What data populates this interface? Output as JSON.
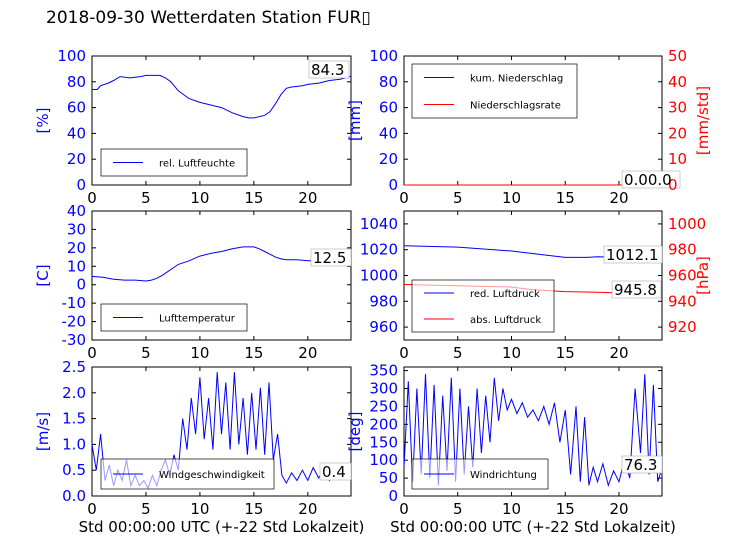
{
  "title": "2018-09-30 Wetterdaten Station FUR▯",
  "colors": {
    "blue": "#0000ff",
    "red": "#ff0000"
  },
  "chart_data": [
    {
      "id": "humidity",
      "type": "line",
      "x_ticks": [
        0,
        5,
        10,
        15,
        20
      ],
      "xlim": [
        0,
        24
      ],
      "y_ticks": [
        0,
        20,
        40,
        60,
        80,
        100
      ],
      "ylim": [
        0,
        100
      ],
      "ylabel": "[%]",
      "last_value_label": "84.3",
      "legend": "upper-left-low",
      "series": [
        {
          "name": "rel. Luftfeuchte",
          "color": "#0000ff",
          "points": [
            [
              0,
              74
            ],
            [
              0.5,
              74
            ],
            [
              0.8,
              77
            ],
            [
              1.5,
              79
            ],
            [
              2,
              81
            ],
            [
              2.6,
              84
            ],
            [
              3.5,
              83
            ],
            [
              4.5,
              84
            ],
            [
              5,
              85
            ],
            [
              5.8,
              85
            ],
            [
              6.3,
              85
            ],
            [
              6.8,
              83
            ],
            [
              7.3,
              80
            ],
            [
              8,
              73
            ],
            [
              9,
              67
            ],
            [
              10,
              64
            ],
            [
              11,
              62
            ],
            [
              12,
              60
            ],
            [
              13,
              56
            ],
            [
              14,
              53
            ],
            [
              14.5,
              52
            ],
            [
              15,
              52
            ],
            [
              16,
              54
            ],
            [
              16.5,
              57
            ],
            [
              17,
              63
            ],
            [
              17.5,
              70
            ],
            [
              18,
              75
            ],
            [
              18.5,
              76
            ],
            [
              19.5,
              77
            ],
            [
              20,
              78
            ],
            [
              21,
              79
            ],
            [
              22,
              81
            ],
            [
              23,
              82
            ],
            [
              24,
              84.3
            ]
          ]
        }
      ]
    },
    {
      "id": "precipitation",
      "type": "line",
      "x_ticks": [
        0,
        5,
        10,
        15,
        20
      ],
      "xlim": [
        0,
        24
      ],
      "y_ticks": [
        0,
        20,
        40,
        60,
        80,
        100
      ],
      "ylim": [
        0,
        100
      ],
      "y2_ticks": [
        0,
        10,
        20,
        30,
        40,
        50
      ],
      "y2lim": [
        0,
        50
      ],
      "ylabel": "[mm]",
      "y2label": "[mm/std]",
      "last_value_label": "0.00.0",
      "legend": "upper-left",
      "series": [
        {
          "name": "kum. Niederschlag",
          "color": "#0000ff",
          "points": [
            [
              0,
              0
            ],
            [
              24,
              0
            ]
          ]
        },
        {
          "name": "Niederschlagsrate",
          "color": "#ff0000",
          "axis": "right",
          "points": [
            [
              0,
              0
            ],
            [
              24,
              0
            ]
          ]
        }
      ]
    },
    {
      "id": "temperature",
      "type": "line",
      "x_ticks": [
        0,
        5,
        10,
        15,
        20
      ],
      "xlim": [
        0,
        24
      ],
      "y_ticks": [
        -30,
        -20,
        -10,
        0,
        10,
        20,
        30,
        40
      ],
      "ylim": [
        -30,
        40
      ],
      "ylabel": "[C]",
      "last_value_label": "12.5",
      "legend": "lower-left",
      "series": [
        {
          "name": "Lufttemperatur",
          "color": "#0000ff",
          "points": [
            [
              0,
              4.5
            ],
            [
              1,
              4
            ],
            [
              2,
              3
            ],
            [
              3,
              2.5
            ],
            [
              4,
              2.5
            ],
            [
              5,
              2
            ],
            [
              5.5,
              2.5
            ],
            [
              6,
              3.5
            ],
            [
              6.5,
              5
            ],
            [
              7,
              7
            ],
            [
              7.5,
              9
            ],
            [
              8,
              11
            ],
            [
              9,
              13
            ],
            [
              10,
              15.5
            ],
            [
              11,
              17
            ],
            [
              12,
              18
            ],
            [
              13,
              19.5
            ],
            [
              14,
              20.5
            ],
            [
              15,
              20.5
            ],
            [
              15.5,
              19.5
            ],
            [
              16,
              18
            ],
            [
              16.5,
              16.5
            ],
            [
              17,
              15
            ],
            [
              17.5,
              14
            ],
            [
              18,
              13.5
            ],
            [
              19,
              13.5
            ],
            [
              20,
              13
            ],
            [
              21,
              13
            ],
            [
              22,
              12.5
            ],
            [
              23,
              12.5
            ],
            [
              24,
              12.5
            ]
          ]
        }
      ]
    },
    {
      "id": "pressure",
      "type": "line",
      "x_ticks": [
        0,
        5,
        10,
        15,
        20
      ],
      "xlim": [
        0,
        24
      ],
      "y_ticks": [
        960,
        980,
        1000,
        1020,
        1040
      ],
      "ylim": [
        950,
        1050
      ],
      "y2_ticks": [
        920,
        940,
        960,
        980,
        1000
      ],
      "y2lim": [
        910,
        1010
      ],
      "y2label": "[hPa]",
      "last_value_labels": [
        "1012.1",
        "945.8"
      ],
      "legend": "lower-left",
      "series": [
        {
          "name": "red. Luftdruck",
          "color": "#0000ff",
          "points": [
            [
              0,
              1023
            ],
            [
              5,
              1022
            ],
            [
              10,
              1019
            ],
            [
              13,
              1016
            ],
            [
              15,
              1014
            ],
            [
              17,
              1014
            ],
            [
              18,
              1014.5
            ],
            [
              20,
              1014
            ],
            [
              22,
              1013
            ],
            [
              24,
              1012.1
            ]
          ]
        },
        {
          "name": "abs. Luftdruck",
          "color": "#ff0000",
          "axis": "right",
          "points": [
            [
              0,
              953
            ],
            [
              5,
              952
            ],
            [
              10,
              951
            ],
            [
              12,
              949
            ],
            [
              15,
              947.5
            ],
            [
              18,
              947
            ],
            [
              21,
              946.2
            ],
            [
              24,
              945.8
            ]
          ]
        }
      ]
    },
    {
      "id": "wind_speed",
      "type": "line",
      "x_ticks": [
        0,
        5,
        10,
        15,
        20
      ],
      "xlim": [
        0,
        24
      ],
      "y_ticks": [
        0.0,
        0.5,
        1.0,
        1.5,
        2.0,
        2.5
      ],
      "ylim": [
        0,
        2.5
      ],
      "ylabel": "[m/s]",
      "xlabel": "Std 00:00:00 UTC (+-22 Std Lokalzeit)",
      "last_value_label": "0.4",
      "legend": "lower-left",
      "series": [
        {
          "name": "Windgeschwindigkeit",
          "color": "#0000ff",
          "points": [
            [
              0,
              1.0
            ],
            [
              0.4,
              0.5
            ],
            [
              0.8,
              1.2
            ],
            [
              1.2,
              0.3
            ],
            [
              1.6,
              0.6
            ],
            [
              2,
              0.2
            ],
            [
              2.4,
              0.5
            ],
            [
              2.8,
              0.3
            ],
            [
              3.2,
              0.7
            ],
            [
              3.6,
              0.2
            ],
            [
              4,
              0.4
            ],
            [
              4.4,
              0.2
            ],
            [
              4.8,
              0.3
            ],
            [
              5.2,
              0.15
            ],
            [
              5.6,
              0.4
            ],
            [
              6,
              0.2
            ],
            [
              6.4,
              0.5
            ],
            [
              6.8,
              0.7
            ],
            [
              7.2,
              0.4
            ],
            [
              7.6,
              0.8
            ],
            [
              8,
              0.5
            ],
            [
              8.4,
              1.5
            ],
            [
              8.8,
              0.9
            ],
            [
              9.2,
              1.9
            ],
            [
              9.6,
              1.2
            ],
            [
              10,
              2.3
            ],
            [
              10.4,
              1.1
            ],
            [
              10.8,
              1.9
            ],
            [
              11.2,
              0.9
            ],
            [
              11.6,
              2.4
            ],
            [
              12,
              1.2
            ],
            [
              12.4,
              2.2
            ],
            [
              12.8,
              0.9
            ],
            [
              13.2,
              2.4
            ],
            [
              13.6,
              1.0
            ],
            [
              14,
              1.9
            ],
            [
              14.4,
              0.8
            ],
            [
              14.8,
              2.0
            ],
            [
              15.2,
              0.9
            ],
            [
              15.6,
              2.1
            ],
            [
              16,
              0.8
            ],
            [
              16.4,
              2.2
            ],
            [
              16.8,
              0.7
            ],
            [
              17.2,
              1.2
            ],
            [
              17.6,
              0.4
            ],
            [
              18,
              0.25
            ],
            [
              18.5,
              0.45
            ],
            [
              19,
              0.3
            ],
            [
              19.5,
              0.5
            ],
            [
              20,
              0.3
            ],
            [
              20.5,
              0.55
            ],
            [
              21,
              0.35
            ],
            [
              21.5,
              0.5
            ],
            [
              22,
              0.3
            ],
            [
              22.5,
              0.45
            ],
            [
              23,
              0.35
            ],
            [
              23.5,
              0.5
            ],
            [
              24,
              0.4
            ]
          ]
        }
      ]
    },
    {
      "id": "wind_direction",
      "type": "line",
      "x_ticks": [
        0,
        5,
        10,
        15,
        20
      ],
      "xlim": [
        0,
        24
      ],
      "y_ticks": [
        0,
        50,
        100,
        150,
        200,
        250,
        300,
        350
      ],
      "ylim": [
        0,
        360
      ],
      "ylabel": "[deg]",
      "xlabel": "Std 00:00:00 UTC (+-22 Std Lokalzeit)",
      "last_value_label": "76.3",
      "legend": "lower-left",
      "series": [
        {
          "name": "Windrichtung",
          "color": "#0000ff",
          "points": [
            [
              0,
              80
            ],
            [
              0.4,
              320
            ],
            [
              0.8,
              40
            ],
            [
              1.2,
              300
            ],
            [
              1.6,
              60
            ],
            [
              2,
              340
            ],
            [
              2.4,
              50
            ],
            [
              2.8,
              310
            ],
            [
              3.2,
              30
            ],
            [
              3.6,
              280
            ],
            [
              4,
              70
            ],
            [
              4.4,
              330
            ],
            [
              4.8,
              40
            ],
            [
              5.2,
              300
            ],
            [
              5.6,
              60
            ],
            [
              6,
              250
            ],
            [
              6.4,
              80
            ],
            [
              6.8,
              300
            ],
            [
              7.2,
              120
            ],
            [
              7.6,
              280
            ],
            [
              8,
              150
            ],
            [
              8.4,
              330
            ],
            [
              8.8,
              210
            ],
            [
              9.2,
              300
            ],
            [
              9.6,
              240
            ],
            [
              10,
              270
            ],
            [
              10.5,
              230
            ],
            [
              11,
              260
            ],
            [
              11.5,
              220
            ],
            [
              12,
              240
            ],
            [
              12.5,
              210
            ],
            [
              13,
              250
            ],
            [
              13.5,
              200
            ],
            [
              14,
              260
            ],
            [
              14.5,
              150
            ],
            [
              15,
              240
            ],
            [
              15.5,
              60
            ],
            [
              16,
              250
            ],
            [
              16.4,
              40
            ],
            [
              16.8,
              220
            ],
            [
              17.2,
              30
            ],
            [
              17.6,
              80
            ],
            [
              18,
              40
            ],
            [
              18.5,
              90
            ],
            [
              19,
              30
            ],
            [
              19.5,
              70
            ],
            [
              20,
              40
            ],
            [
              20.5,
              100
            ],
            [
              21,
              50
            ],
            [
              21.5,
              300
            ],
            [
              22,
              120
            ],
            [
              22.4,
              340
            ],
            [
              22.8,
              60
            ],
            [
              23.2,
              310
            ],
            [
              23.6,
              40
            ],
            [
              24,
              76.3
            ]
          ]
        }
      ]
    }
  ]
}
